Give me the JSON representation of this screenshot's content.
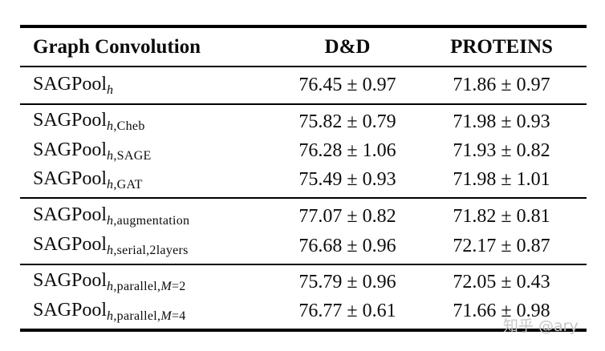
{
  "table": {
    "header": {
      "method": "Graph Convolution",
      "dd": "D&D",
      "proteins": "PROTEINS"
    },
    "groups": [
      {
        "rows": [
          {
            "base": "SAGPool",
            "sub": [
              [
                "h",
                "i"
              ]
            ],
            "dd": "76.45 ± 0.97",
            "proteins": "71.86 ± 0.97"
          }
        ]
      },
      {
        "rows": [
          {
            "base": "SAGPool",
            "sub": [
              [
                "h",
                "i"
              ],
              [
                ",Cheb",
                "r"
              ]
            ],
            "dd": "75.82 ± 0.79",
            "proteins": "71.98 ± 0.93"
          },
          {
            "base": "SAGPool",
            "sub": [
              [
                "h",
                "i"
              ],
              [
                ",SAGE",
                "r"
              ]
            ],
            "dd": "76.28 ± 1.06",
            "proteins": "71.93 ± 0.82"
          },
          {
            "base": "SAGPool",
            "sub": [
              [
                "h",
                "i"
              ],
              [
                ",GAT",
                "r"
              ]
            ],
            "dd": "75.49 ± 0.93",
            "proteins": "71.98 ± 1.01"
          }
        ]
      },
      {
        "rows": [
          {
            "base": "SAGPool",
            "sub": [
              [
                "h",
                "i"
              ],
              [
                ",augmentation",
                "r"
              ]
            ],
            "dd": "77.07 ± 0.82",
            "proteins": "71.82 ± 0.81"
          },
          {
            "base": "SAGPool",
            "sub": [
              [
                "h",
                "i"
              ],
              [
                ",serial,2layers",
                "r"
              ]
            ],
            "dd": "76.68 ± 0.96",
            "proteins": "72.17 ± 0.87"
          }
        ]
      },
      {
        "rows": [
          {
            "base": "SAGPool",
            "sub": [
              [
                "h",
                "i"
              ],
              [
                ",parallel,",
                "r"
              ],
              [
                "M",
                "i"
              ],
              [
                "=2",
                "r"
              ]
            ],
            "dd": "75.79 ± 0.96",
            "proteins": "72.05 ± 0.43"
          },
          {
            "base": "SAGPool",
            "sub": [
              [
                "h",
                "i"
              ],
              [
                ",parallel,",
                "r"
              ],
              [
                "M",
                "i"
              ],
              [
                "=4",
                "r"
              ]
            ],
            "dd": "76.77 ± 0.61",
            "proteins": "71.66 ± 0.98"
          }
        ]
      }
    ]
  },
  "watermark": {
    "text": "知乎 @ary",
    "color": "#c6c6c9"
  }
}
